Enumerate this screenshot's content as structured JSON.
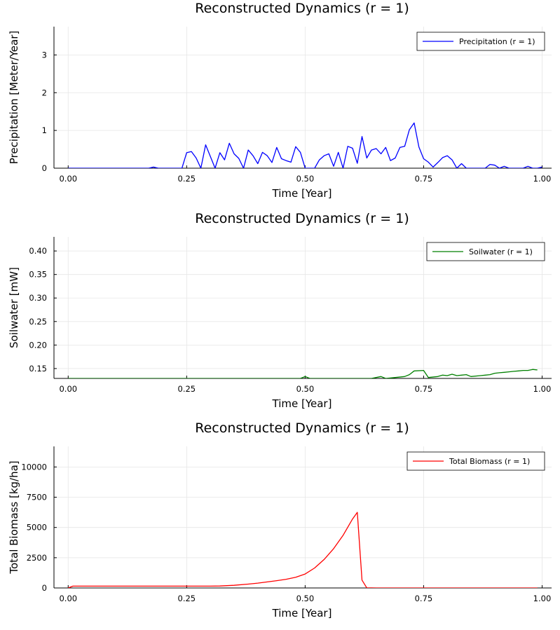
{
  "chart_data": [
    {
      "type": "line",
      "title": "Reconstructed Dynamics (r = 1)",
      "xlabel": "Time [Year]",
      "ylabel": "Precipitation [Meter/Year]",
      "xlim": [
        -0.03,
        1.02
      ],
      "ylim": [
        0,
        3.75
      ],
      "xticks": [
        0,
        0.25,
        0.5,
        0.75,
        1.0
      ],
      "xtick_labels": [
        "0.00",
        "0.25",
        "0.50",
        "0.75",
        "1.00"
      ],
      "yticks": [
        0,
        1,
        2,
        3
      ],
      "ytick_labels": [
        "0",
        "1",
        "2",
        "3"
      ],
      "grid": true,
      "legend": "top-right",
      "series": [
        {
          "name": "Precipitation (r = 1)",
          "color": "#0000ff",
          "x": [
            0.0,
            0.17,
            0.18,
            0.19,
            0.24,
            0.25,
            0.26,
            0.27,
            0.28,
            0.29,
            0.31,
            0.32,
            0.33,
            0.34,
            0.35,
            0.36,
            0.37,
            0.38,
            0.39,
            0.4,
            0.41,
            0.42,
            0.43,
            0.44,
            0.45,
            0.46,
            0.47,
            0.48,
            0.49,
            0.5,
            0.52,
            0.53,
            0.54,
            0.55,
            0.56,
            0.57,
            0.58,
            0.59,
            0.6,
            0.61,
            0.62,
            0.63,
            0.64,
            0.65,
            0.66,
            0.67,
            0.68,
            0.69,
            0.7,
            0.71,
            0.72,
            0.73,
            0.74,
            0.75,
            0.76,
            0.77,
            0.78,
            0.79,
            0.8,
            0.81,
            0.82,
            0.83,
            0.84,
            0.88,
            0.89,
            0.9,
            0.91,
            0.92,
            0.93,
            0.96,
            0.97,
            0.98,
            0.99,
            1.0
          ],
          "y": [
            0,
            0,
            0.03,
            0,
            0,
            0.41,
            0.44,
            0.27,
            0,
            0.62,
            0,
            0.41,
            0.22,
            0.66,
            0.38,
            0.26,
            0,
            0.48,
            0.33,
            0.12,
            0.42,
            0.33,
            0.15,
            0.55,
            0.25,
            0.2,
            0.16,
            0.57,
            0.42,
            0,
            0,
            0.22,
            0.33,
            0.38,
            0.05,
            0.42,
            0,
            0.58,
            0.53,
            0.13,
            0.84,
            0.27,
            0.48,
            0.52,
            0.38,
            0.55,
            0.2,
            0.27,
            0.55,
            0.58,
            1.02,
            1.2,
            0.56,
            0.25,
            0.16,
            0.03,
            0.15,
            0.28,
            0.33,
            0.22,
            0,
            0.12,
            0,
            0,
            0.1,
            0.08,
            0,
            0.05,
            0,
            0,
            0.05,
            0,
            0,
            0.03
          ]
        }
      ]
    },
    {
      "type": "line",
      "title": "Reconstructed Dynamics (r = 1)",
      "xlabel": "Time [Year]",
      "ylabel": "Soilwater [mW]",
      "xlim": [
        -0.03,
        1.02
      ],
      "ylim": [
        0.129,
        0.43
      ],
      "xticks": [
        0,
        0.25,
        0.5,
        0.75,
        1.0
      ],
      "xtick_labels": [
        "0.00",
        "0.25",
        "0.50",
        "0.75",
        "1.00"
      ],
      "yticks": [
        0.15,
        0.2,
        0.25,
        0.3,
        0.35,
        0.4
      ],
      "ytick_labels": [
        "0.15",
        "0.20",
        "0.25",
        "0.30",
        "0.35",
        "0.40"
      ],
      "grid": true,
      "legend": "top-right",
      "series": [
        {
          "name": "Soilwater (r = 1)",
          "color": "#008000",
          "x": [
            0.0,
            0.49,
            0.5,
            0.51,
            0.64,
            0.66,
            0.67,
            0.69,
            0.71,
            0.72,
            0.73,
            0.75,
            0.76,
            0.78,
            0.79,
            0.8,
            0.81,
            0.82,
            0.83,
            0.84,
            0.85,
            0.87,
            0.88,
            0.89,
            0.9,
            0.91,
            0.92,
            0.93,
            0.94,
            0.95,
            0.96,
            0.97,
            0.98,
            0.99
          ],
          "y": [
            0.129,
            0.129,
            0.133,
            0.129,
            0.129,
            0.133,
            0.129,
            0.131,
            0.133,
            0.137,
            0.145,
            0.146,
            0.131,
            0.133,
            0.136,
            0.135,
            0.138,
            0.135,
            0.136,
            0.137,
            0.133,
            0.135,
            0.136,
            0.137,
            0.14,
            0.141,
            0.142,
            0.143,
            0.144,
            0.145,
            0.146,
            0.146,
            0.148,
            0.147
          ]
        }
      ]
    },
    {
      "type": "line",
      "title": "Reconstructed Dynamics (r = 1)",
      "xlabel": "Time [Year]",
      "ylabel": "Total Biomass [kg/ha]",
      "xlim": [
        -0.03,
        1.02
      ],
      "ylim": [
        0,
        11700
      ],
      "xticks": [
        0,
        0.25,
        0.5,
        0.75,
        1.0
      ],
      "xtick_labels": [
        "0.00",
        "0.25",
        "0.50",
        "0.75",
        "1.00"
      ],
      "yticks": [
        0,
        2500,
        5000,
        7500,
        10000
      ],
      "ytick_labels": [
        "0",
        "2500",
        "5000",
        "7500",
        "10000"
      ],
      "grid": true,
      "legend": "top-right",
      "series": [
        {
          "name": "Total Biomass (r = 1)",
          "color": "#ff0000",
          "x": [
            0.0,
            0.01,
            0.05,
            0.1,
            0.15,
            0.2,
            0.25,
            0.3,
            0.32,
            0.35,
            0.38,
            0.4,
            0.42,
            0.44,
            0.46,
            0.48,
            0.5,
            0.52,
            0.54,
            0.56,
            0.58,
            0.6,
            0.61,
            0.62,
            0.63,
            0.65,
            0.7,
            0.8,
            0.9,
            0.99
          ],
          "y": [
            0,
            150,
            150,
            150,
            150,
            150,
            150,
            150,
            160,
            220,
            320,
            400,
            500,
            600,
            720,
            880,
            1150,
            1650,
            2350,
            3250,
            4350,
            5700,
            6250,
            650,
            10,
            0,
            0,
            0,
            0,
            0
          ]
        }
      ]
    }
  ]
}
